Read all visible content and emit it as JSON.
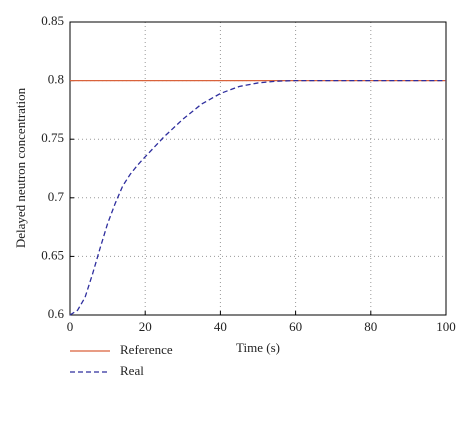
{
  "chart_data": {
    "type": "line",
    "xlabel": "Time (s)",
    "ylabel": "Delayed neutron concentration",
    "x": [
      0,
      2,
      4,
      6,
      8,
      10,
      12,
      14,
      16,
      18,
      20,
      25,
      30,
      35,
      40,
      45,
      50,
      55,
      60,
      70,
      80,
      90,
      100
    ],
    "series": [
      {
        "name": "Reference",
        "color": "#d9623b",
        "dash": false,
        "values": [
          0.8,
          0.8,
          0.8,
          0.8,
          0.8,
          0.8,
          0.8,
          0.8,
          0.8,
          0.8,
          0.8,
          0.8,
          0.8,
          0.8,
          0.8,
          0.8,
          0.8,
          0.8,
          0.8,
          0.8,
          0.8,
          0.8,
          0.8
        ]
      },
      {
        "name": "Real",
        "color": "#2e2e9e",
        "dash": true,
        "values": [
          0.6,
          0.604,
          0.615,
          0.635,
          0.657,
          0.678,
          0.695,
          0.71,
          0.72,
          0.728,
          0.735,
          0.752,
          0.767,
          0.78,
          0.789,
          0.795,
          0.798,
          0.7995,
          0.8,
          0.8,
          0.8,
          0.8,
          0.8
        ]
      }
    ],
    "xlim": [
      0,
      100
    ],
    "xticks": [
      0,
      20,
      40,
      60,
      80,
      100
    ],
    "ylim": [
      0.6,
      0.85
    ],
    "yticks": [
      0.6,
      0.65,
      0.7,
      0.75,
      0.8,
      0.85
    ],
    "grid": true,
    "legend": "bottom"
  }
}
